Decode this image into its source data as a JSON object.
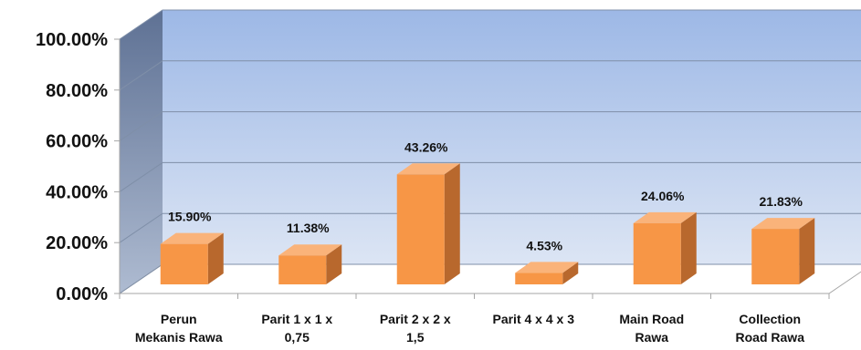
{
  "chart_data": {
    "type": "bar",
    "title": "",
    "xlabel": "",
    "ylabel": "",
    "ylim": [
      0,
      100
    ],
    "yticks": [
      "0.00%",
      "20.00%",
      "40.00%",
      "60.00%",
      "80.00%",
      "100.00%"
    ],
    "categories": [
      [
        "Perun",
        "Mekanis Rawa"
      ],
      [
        "Parit 1 x 1 x",
        "0,75"
      ],
      [
        "Parit 2 x 2 x",
        "1,5"
      ],
      [
        "Parit 4 x 4 x 3"
      ],
      [
        "Main Road",
        "Rawa"
      ],
      [
        "Collection",
        "Road Rawa"
      ]
    ],
    "values": [
      15.9,
      11.38,
      43.26,
      4.53,
      24.06,
      21.83
    ],
    "data_labels": [
      "15.90%",
      "11.38%",
      "43.26%",
      "4.53%",
      "24.06%",
      "21.83%"
    ],
    "grid": true,
    "legend": "none",
    "three_d": true,
    "colors": {
      "bar_front": "#F79646",
      "bar_top": "#FAB37A",
      "bar_side": "#B8682D",
      "back_wall_top": "#9DB8E6",
      "back_wall_bottom": "#DCE5F4",
      "side_wall_top": "#5E7194",
      "side_wall_bottom": "#AEBBD1",
      "grid": "#7F8FA8"
    }
  }
}
